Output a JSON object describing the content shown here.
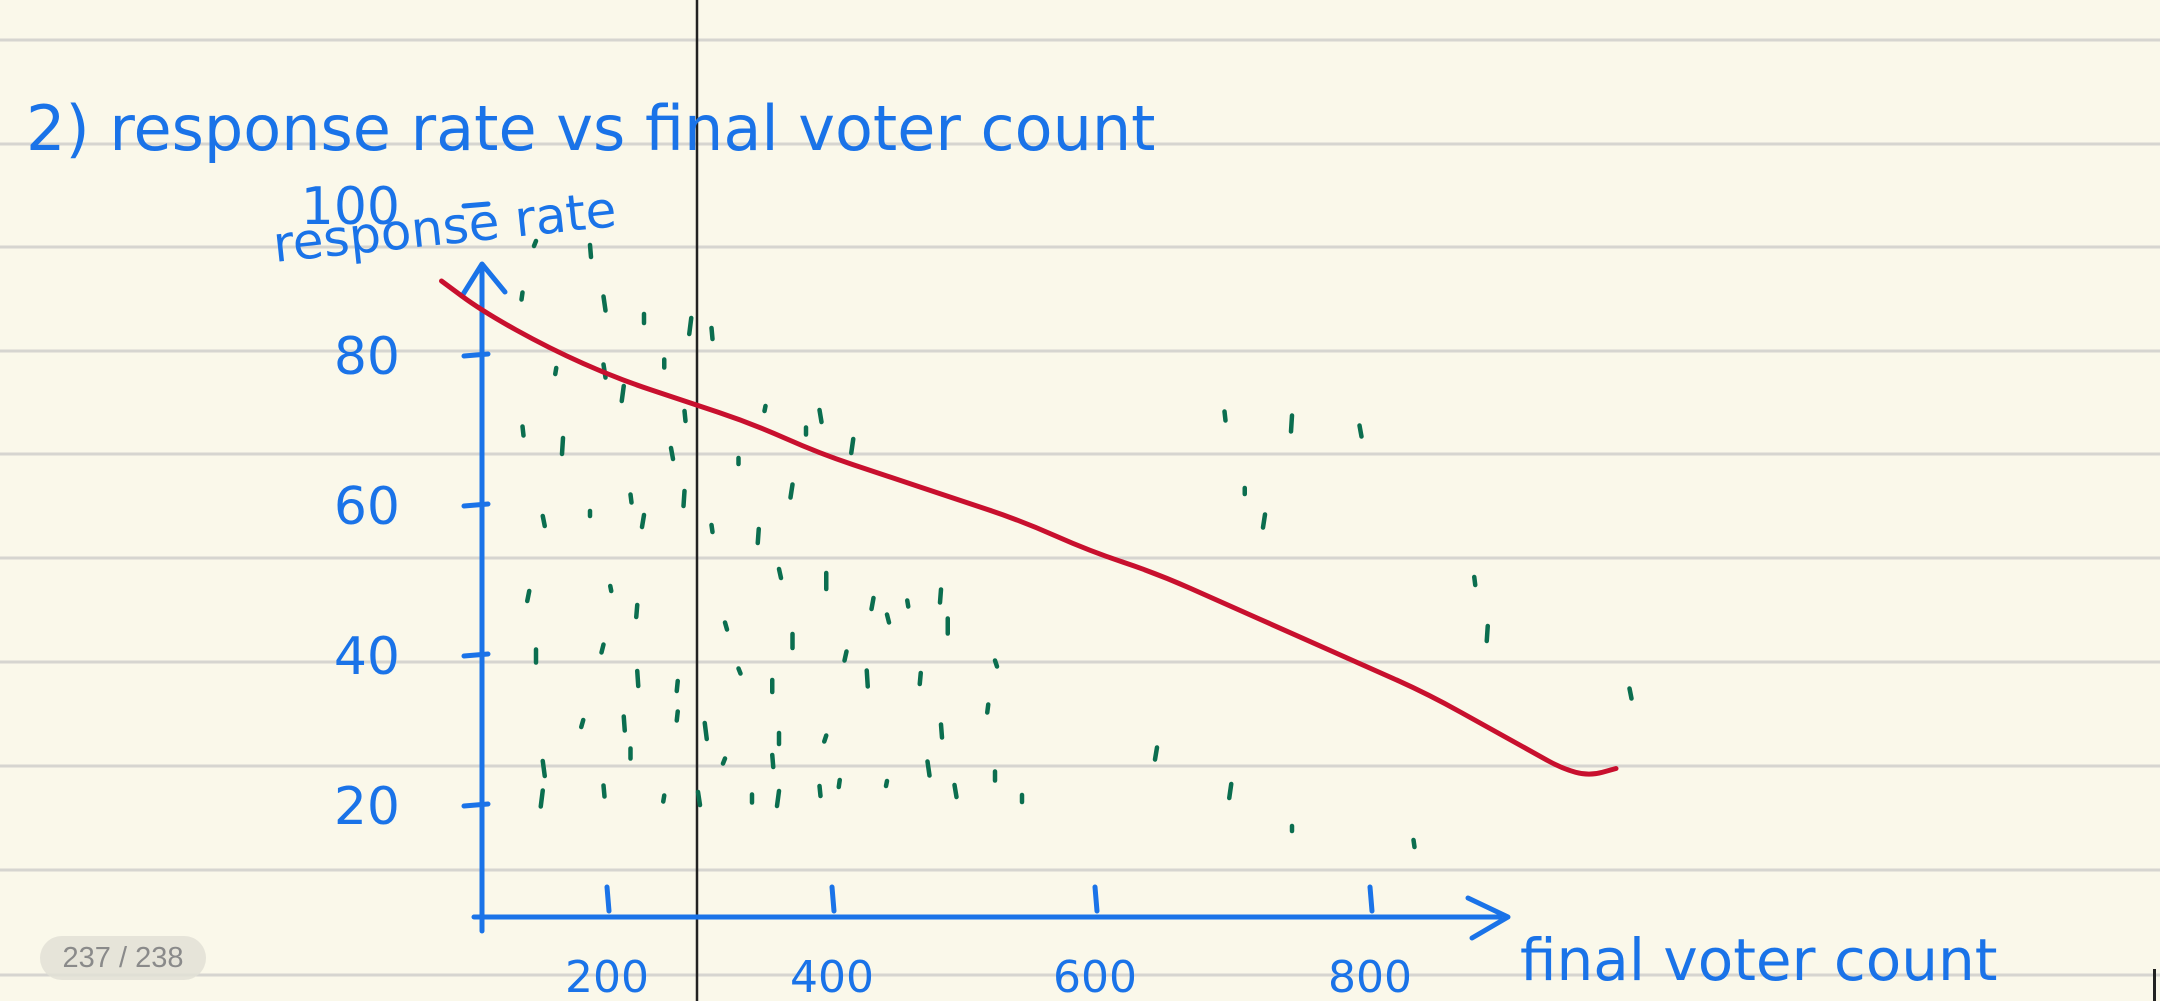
{
  "colors": {
    "paper": "#faf8ea",
    "ruled_line": "#d6d5d0",
    "ink_blue": "#1a73e8",
    "ink_green": "#0b6e4f",
    "ink_red": "#c8102e",
    "page_split_line": "#222222"
  },
  "notebook": {
    "page_indicator": "237 / 238"
  },
  "chart_data": {
    "type": "scatter",
    "title": "2) response rate vs final voter count",
    "xlabel": "final voter count",
    "ylabel": "response rate",
    "xlim": [
      0,
      850
    ],
    "ylim": [
      0,
      100
    ],
    "x_ticks": [
      200,
      400,
      600,
      800
    ],
    "y_ticks": [
      20,
      40,
      60,
      80,
      100
    ],
    "grid": false,
    "points": [
      [
        40,
        95
      ],
      [
        80,
        94
      ],
      [
        30,
        88
      ],
      [
        90,
        87
      ],
      [
        120,
        85
      ],
      [
        155,
        84
      ],
      [
        170,
        83
      ],
      [
        55,
        78
      ],
      [
        90,
        78
      ],
      [
        135,
        79
      ],
      [
        105,
        75
      ],
      [
        150,
        72
      ],
      [
        210,
        73
      ],
      [
        250,
        72
      ],
      [
        240,
        70
      ],
      [
        275,
        68
      ],
      [
        30,
        70
      ],
      [
        60,
        68
      ],
      [
        140,
        67
      ],
      [
        190,
        66
      ],
      [
        230,
        62
      ],
      [
        110,
        61
      ],
      [
        150,
        61
      ],
      [
        45,
        58
      ],
      [
        80,
        59
      ],
      [
        120,
        58
      ],
      [
        170,
        57
      ],
      [
        205,
        56
      ],
      [
        220,
        51
      ],
      [
        255,
        50
      ],
      [
        290,
        47
      ],
      [
        315,
        47
      ],
      [
        340,
        48
      ],
      [
        300,
        45
      ],
      [
        345,
        44
      ],
      [
        35,
        48
      ],
      [
        95,
        49
      ],
      [
        115,
        46
      ],
      [
        180,
        44
      ],
      [
        230,
        42
      ],
      [
        270,
        40
      ],
      [
        285,
        37
      ],
      [
        325,
        37
      ],
      [
        380,
        39
      ],
      [
        40,
        40
      ],
      [
        90,
        41
      ],
      [
        115,
        37
      ],
      [
        145,
        36
      ],
      [
        190,
        38
      ],
      [
        215,
        36
      ],
      [
        75,
        31
      ],
      [
        105,
        31
      ],
      [
        145,
        32
      ],
      [
        165,
        30
      ],
      [
        220,
        29
      ],
      [
        255,
        29
      ],
      [
        340,
        30
      ],
      [
        375,
        33
      ],
      [
        45,
        25
      ],
      [
        110,
        27
      ],
      [
        180,
        26
      ],
      [
        215,
        26
      ],
      [
        265,
        23
      ],
      [
        330,
        25
      ],
      [
        380,
        24
      ],
      [
        45,
        21
      ],
      [
        90,
        22
      ],
      [
        135,
        21
      ],
      [
        160,
        21
      ],
      [
        200,
        21
      ],
      [
        220,
        21
      ],
      [
        250,
        22
      ],
      [
        300,
        23
      ],
      [
        350,
        22
      ],
      [
        400,
        21
      ],
      [
        555,
        22
      ],
      [
        550,
        72
      ],
      [
        600,
        71
      ],
      [
        650,
        70
      ],
      [
        565,
        62
      ],
      [
        580,
        58
      ],
      [
        735,
        50
      ],
      [
        745,
        43
      ],
      [
        850,
        35
      ],
      [
        600,
        17
      ],
      [
        500,
        27
      ],
      [
        690,
        15
      ]
    ],
    "trend_line": [
      [
        -30,
        90
      ],
      [
        0,
        86
      ],
      [
        50,
        81
      ],
      [
        100,
        77
      ],
      [
        150,
        74
      ],
      [
        200,
        71
      ],
      [
        250,
        67
      ],
      [
        300,
        64
      ],
      [
        350,
        61
      ],
      [
        400,
        58
      ],
      [
        450,
        54
      ],
      [
        500,
        51
      ],
      [
        550,
        47
      ],
      [
        600,
        43
      ],
      [
        650,
        39
      ],
      [
        700,
        35
      ],
      [
        750,
        30
      ],
      [
        780,
        27
      ],
      [
        800,
        25
      ],
      [
        820,
        24
      ],
      [
        840,
        25
      ]
    ]
  }
}
